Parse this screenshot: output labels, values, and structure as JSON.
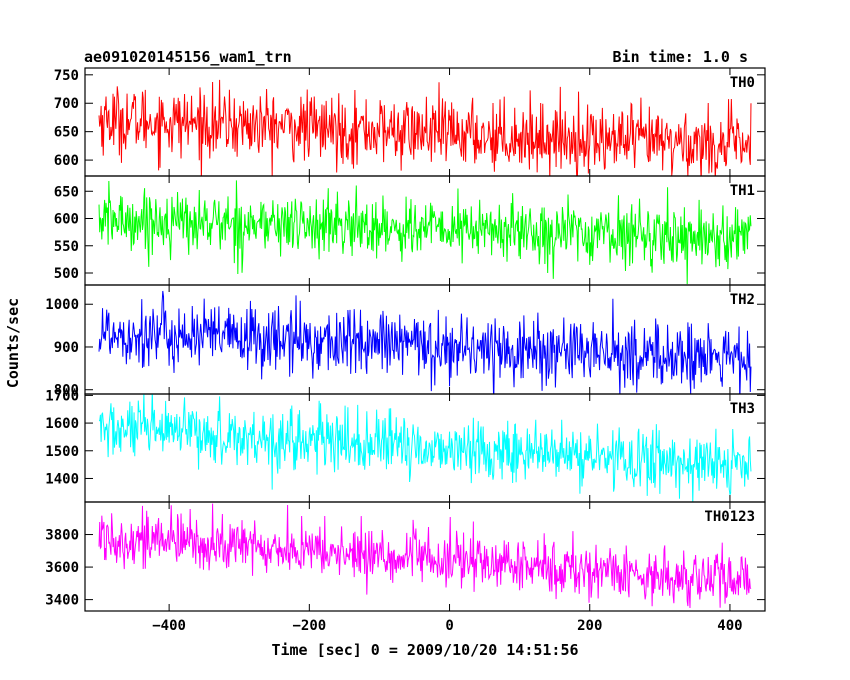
{
  "header": {
    "title": "ae091020145156_wam1_trn",
    "bin_time": "Bin time: 1.0 s"
  },
  "axes": {
    "xlabel": "Time [sec] 0 = 2009/10/20 14:51:56",
    "ylabel": "Counts/sec"
  },
  "chart_data": {
    "type": "line",
    "title": "ae091020145156_wam1_trn",
    "xlabel": "Time [sec] 0 = 2009/10/20 14:51:56",
    "ylabel": "Counts/sec",
    "xlim": [
      -520,
      450
    ],
    "x_range": [
      -500,
      430
    ],
    "bin_time_s": 1.0,
    "x_ticks": [
      -400,
      -200,
      0,
      200,
      400
    ],
    "x_tick_labels": [
      "−400",
      "−200",
      "0",
      "200",
      "400"
    ],
    "panels": [
      {
        "name": "TH0",
        "color": "#ff0000",
        "ylim": [
          572,
          762
        ],
        "y_ticks": [
          600,
          650,
          700,
          750
        ],
        "y_tick_labels": [
          "600",
          "650",
          "700",
          "750"
        ],
        "trend": [
          [
            -500,
            672
          ],
          [
            430,
            625
          ]
        ],
        "noise_sd": 30
      },
      {
        "name": "TH1",
        "color": "#00ff00",
        "ylim": [
          478,
          678
        ],
        "y_ticks": [
          500,
          550,
          600,
          650
        ],
        "y_tick_labels": [
          "500",
          "550",
          "600",
          "650"
        ],
        "trend": [
          [
            -500,
            598
          ],
          [
            430,
            565
          ]
        ],
        "noise_sd": 28
      },
      {
        "name": "TH2",
        "color": "#0000ff",
        "ylim": [
          790,
          1045
        ],
        "y_ticks": [
          800,
          900,
          1000
        ],
        "y_tick_labels": [
          "800",
          "900",
          "1000"
        ],
        "trend": [
          [
            -500,
            935
          ],
          [
            430,
            870
          ]
        ],
        "noise_sd": 40
      },
      {
        "name": "TH3",
        "color": "#00ffff",
        "ylim": [
          1315,
          1705
        ],
        "y_ticks": [
          1400,
          1500,
          1600,
          1700
        ],
        "y_tick_labels": [
          "1400",
          "1500",
          "1600",
          "1700"
        ],
        "trend": [
          [
            -500,
            1580
          ],
          [
            430,
            1445
          ]
        ],
        "noise_sd": 55
      },
      {
        "name": "TH0123",
        "color": "#ff00ff",
        "ylim": [
          3330,
          4000
        ],
        "y_ticks": [
          3400,
          3600,
          3800
        ],
        "y_tick_labels": [
          "3400",
          "3600",
          "3800"
        ],
        "trend": [
          [
            -500,
            3790
          ],
          [
            430,
            3510
          ]
        ],
        "noise_sd": 85
      }
    ]
  }
}
